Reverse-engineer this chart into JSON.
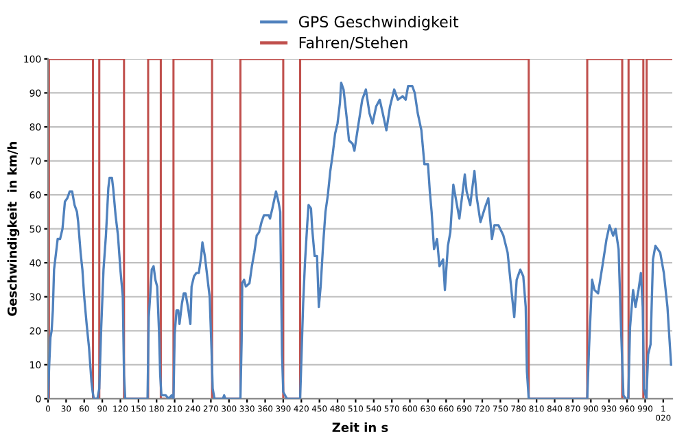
{
  "chart_data": {
    "type": "line",
    "xlabel": "Zeit in s",
    "ylabel": "Geschwindigkeit  in km/h",
    "xlim": [
      0,
      1035
    ],
    "ylim": [
      0,
      100
    ],
    "xticks": [
      0,
      30,
      60,
      90,
      120,
      150,
      180,
      210,
      240,
      270,
      300,
      330,
      360,
      390,
      420,
      450,
      480,
      510,
      540,
      570,
      600,
      630,
      660,
      690,
      720,
      750,
      780,
      810,
      840,
      870,
      900,
      930,
      960,
      990,
      {
        "value": 1020,
        "label": "1\n020"
      }
    ],
    "yticks": [
      0,
      10,
      20,
      30,
      40,
      50,
      60,
      70,
      80,
      90,
      100
    ],
    "grid": "y",
    "legend": "top",
    "series": [
      {
        "name": "GPS Geschwindigkeit",
        "color": "#4f81bd",
        "x": [
          0,
          2,
          4,
          6,
          8,
          10,
          14,
          16,
          20,
          24,
          28,
          32,
          36,
          40,
          44,
          48,
          50,
          54,
          57,
          60,
          64,
          68,
          72,
          74,
          76,
          82,
          85,
          88,
          92,
          96,
          100,
          102,
          106,
          108,
          112,
          116,
          120,
          124,
          126,
          128,
          165,
          167,
          170,
          172,
          175,
          178,
          181,
          184,
          186,
          188,
          195,
          200,
          205,
          208,
          210,
          213,
          216,
          218,
          222,
          225,
          228,
          232,
          236,
          238,
          242,
          246,
          250,
          254,
          256,
          260,
          264,
          268,
          271,
          273,
          276,
          290,
          292,
          294,
          319,
          321,
          322,
          325,
          328,
          334,
          338,
          342,
          346,
          350,
          354,
          358,
          366,
          368,
          372,
          378,
          382,
          385,
          388,
          390,
          393,
          396,
          418,
          420,
          423,
          426,
          430,
          432,
          436,
          438,
          442,
          446,
          449,
          452,
          456,
          460,
          464,
          468,
          472,
          476,
          480,
          484,
          486,
          490,
          495,
          499,
          505,
          508,
          514,
          521,
          527,
          533,
          538,
          544,
          550,
          555,
          561,
          567,
          574,
          580,
          588,
          593,
          597,
          604,
          608,
          613,
          619,
          624,
          630,
          633,
          636,
          640,
          645,
          649,
          655,
          658,
          663,
          667,
          672,
          676,
          682,
          691,
          694,
          700,
          707,
          711,
          717,
          724,
          730,
          736,
          740,
          747,
          755,
          762,
          770,
          773,
          777,
          783,
          788,
          792,
          794,
          797,
          894,
          897,
          902,
          906,
          912,
          920,
          926,
          931,
          937,
          941,
          946,
          950,
          954,
          958,
          962,
          965,
          970,
          974,
          979,
          983,
          986,
          988,
          992,
          995,
          999,
          1003,
          1007,
          1015,
          1021,
          1027,
          1033
        ],
        "values": [
          0,
          10,
          18,
          20,
          26,
          38,
          44,
          47,
          47,
          50,
          58,
          59,
          61,
          61,
          57,
          55,
          52,
          43,
          38,
          30,
          22,
          15,
          5,
          2,
          0,
          0,
          3,
          20,
          38,
          48,
          62,
          65,
          65,
          62,
          54,
          48,
          38,
          30,
          7,
          0,
          0,
          24,
          32,
          38,
          39,
          35,
          33,
          20,
          7,
          1,
          1,
          0,
          1,
          0,
          19,
          26,
          26,
          22,
          28,
          31,
          31,
          27,
          22,
          33,
          36,
          37,
          37,
          42,
          46,
          42,
          36,
          30,
          15,
          3,
          0,
          0,
          1,
          0,
          0,
          17,
          34,
          35,
          33,
          34,
          39,
          43,
          48,
          49,
          52,
          54,
          54,
          53,
          56,
          61,
          58,
          55,
          13,
          2,
          1,
          0,
          0,
          11,
          28,
          40,
          52,
          57,
          56,
          50,
          42,
          42,
          27,
          33,
          45,
          55,
          60,
          67,
          72,
          78,
          81,
          87,
          93,
          91,
          83,
          76,
          75,
          73,
          80,
          88,
          91,
          84,
          81,
          86,
          88,
          84,
          79,
          86,
          91,
          88,
          89,
          88,
          92,
          92,
          90,
          84,
          79,
          69,
          69,
          61,
          55,
          44,
          47,
          39,
          41,
          32,
          45,
          49,
          63,
          59,
          53,
          66,
          61,
          57,
          67,
          59,
          52,
          56,
          59,
          47,
          51,
          51,
          48,
          43,
          29,
          24,
          35,
          38,
          36,
          27,
          8,
          0,
          0,
          15,
          35,
          32,
          31,
          40,
          47,
          51,
          48,
          50,
          44,
          21,
          1,
          0,
          0,
          21,
          32,
          27,
          32,
          37,
          27,
          3,
          0,
          13,
          16,
          41,
          45,
          43,
          37,
          27,
          10
        ]
      },
      {
        "name": "Fahren/Stehen",
        "type": "step",
        "color": "#c0504d",
        "x": [
          0,
          1.5,
          74.5,
          85,
          126,
          166,
          187,
          208,
          272,
          319,
          390,
          418,
          797,
          894,
          952,
          962.5,
          987,
          992.5,
          1035
        ],
        "values": [
          0,
          100,
          0,
          100,
          0,
          100,
          0,
          100,
          0,
          100,
          0,
          100,
          0,
          100,
          0,
          100,
          0,
          100,
          100
        ]
      }
    ]
  }
}
